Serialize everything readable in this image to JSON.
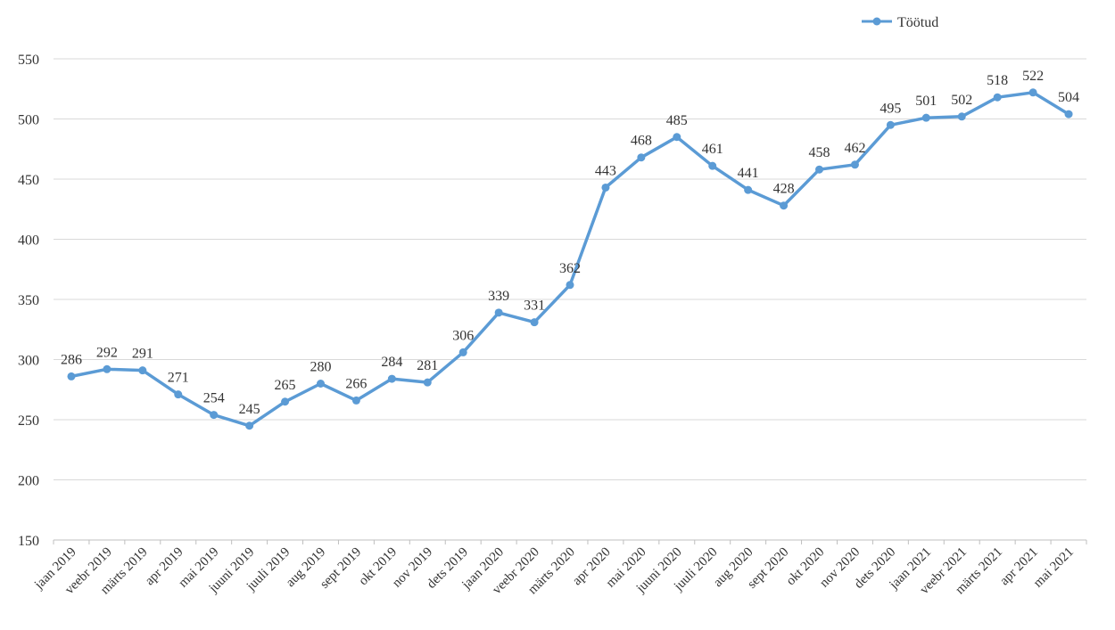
{
  "chart_data": {
    "type": "line",
    "categories": [
      "jaan 2019",
      "veebr 2019",
      "märts 2019",
      "apr 2019",
      "mai 2019",
      "juuni 2019",
      "juuli 2019",
      "aug 2019",
      "sept 2019",
      "okt 2019",
      "nov 2019",
      "dets 2019",
      "jaan 2020",
      "veebr 2020",
      "märts 2020",
      "apr 2020",
      "mai 2020",
      "juuni 2020",
      "juuli 2020",
      "aug 2020",
      "sept 2020",
      "okt 2020",
      "nov 2020",
      "dets 2020",
      "jaan 2021",
      "veebr 2021",
      "märts 2021",
      "apr 2021",
      "mai 2021"
    ],
    "series": [
      {
        "name": "Töötud",
        "color": "#5b9bd5",
        "values": [
          286,
          292,
          291,
          271,
          254,
          245,
          265,
          280,
          266,
          284,
          281,
          306,
          339,
          331,
          362,
          443,
          468,
          485,
          461,
          441,
          428,
          458,
          462,
          495,
          501,
          502,
          518,
          522,
          504
        ]
      }
    ],
    "ylim": [
      150,
      550
    ],
    "yticks": [
      150,
      200,
      250,
      300,
      350,
      400,
      450,
      500,
      550
    ],
    "grid": true,
    "legend": "top-right",
    "title": "",
    "xlabel": "",
    "ylabel": ""
  }
}
